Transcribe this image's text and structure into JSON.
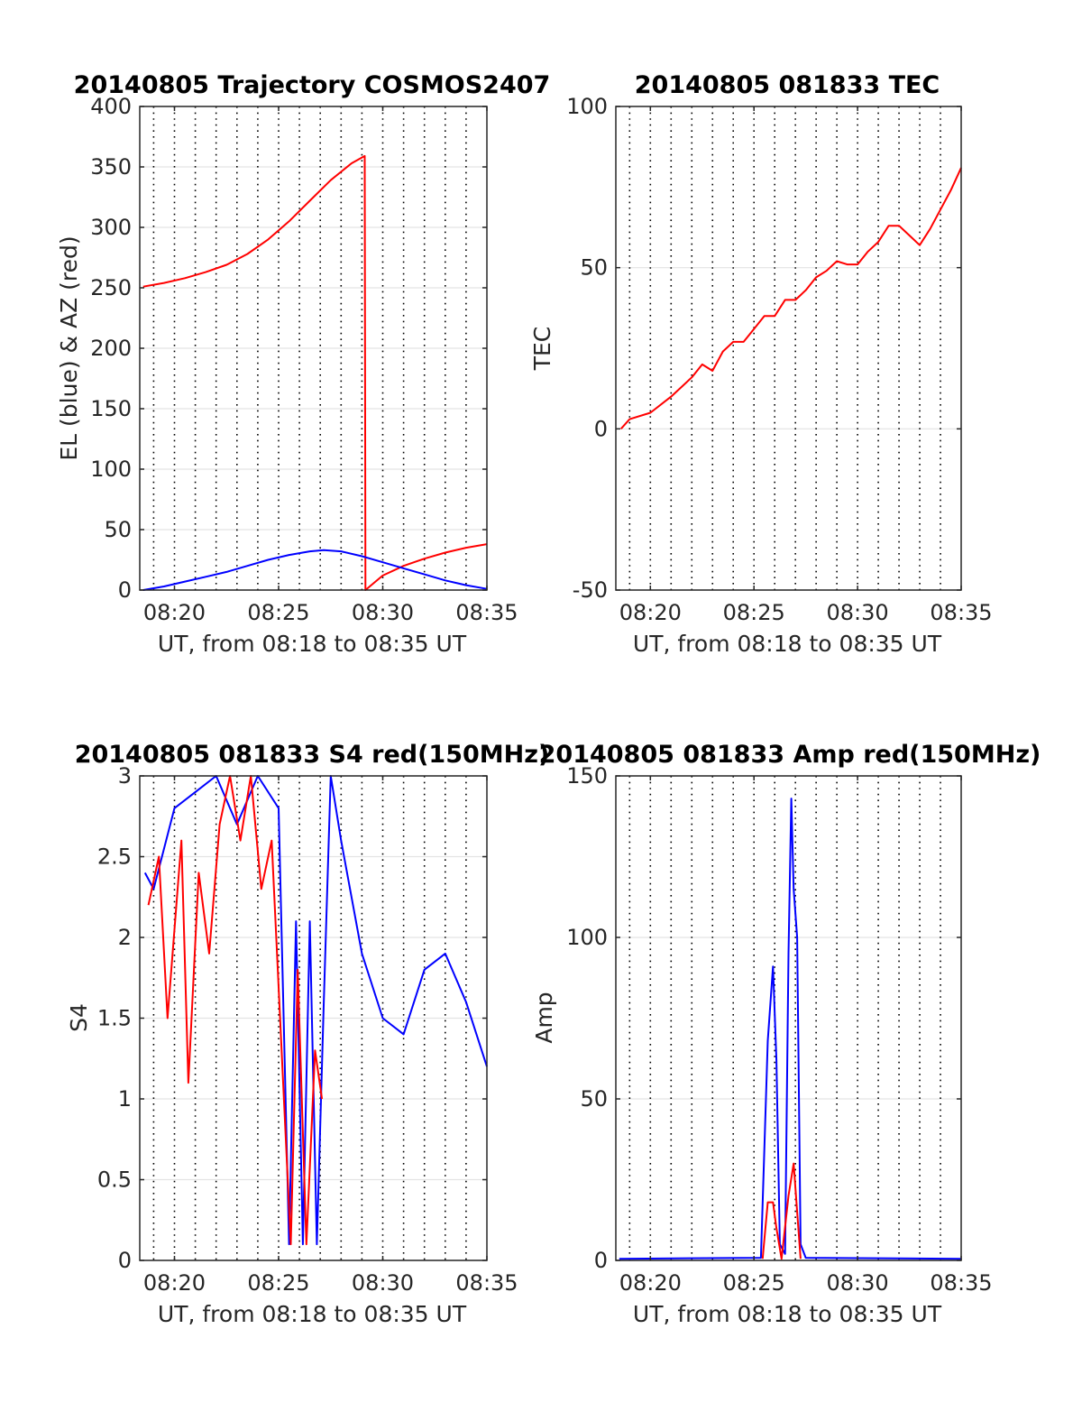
{
  "chart_data": [
    {
      "type": "line",
      "title": "20140805 Trajectory COSMOS2407",
      "xlabel": "UT, from 08:18 to 08:35 UT",
      "ylabel": "EL (blue) & AZ (red)",
      "xlim": [
        "08:18:20",
        "08:35:00"
      ],
      "ylim": [
        0,
        400
      ],
      "xticks": [
        "08:20",
        "08:25",
        "08:30",
        "08:35"
      ],
      "yticks": [
        "0",
        "50",
        "100",
        "150",
        "200",
        "250",
        "300",
        "350",
        "400"
      ],
      "grid": true,
      "series": [
        {
          "color": "#ff0000",
          "x": [
            "08:18:30",
            "08:19:30",
            "08:20:30",
            "08:21:30",
            "08:22:30",
            "08:23:30",
            "08:24:30",
            "08:25:30",
            "08:26:30",
            "08:27:30",
            "08:28:30",
            "08:29:08",
            "08:29:10",
            "08:30:00",
            "08:31:00",
            "08:32:00",
            "08:33:00",
            "08:34:00",
            "08:35:00"
          ],
          "y": [
            251,
            254,
            258,
            263,
            269,
            278,
            290,
            305,
            322,
            339,
            353,
            359,
            0,
            12,
            20,
            26,
            31,
            35,
            38
          ]
        },
        {
          "color": "#0000ff",
          "x": [
            "08:18:30",
            "08:19:30",
            "08:20:30",
            "08:21:30",
            "08:22:30",
            "08:23:30",
            "08:24:30",
            "08:25:30",
            "08:26:30",
            "08:27:10",
            "08:28:00",
            "08:29:00",
            "08:30:00",
            "08:31:00",
            "08:32:00",
            "08:33:00",
            "08:34:00",
            "08:35:00"
          ],
          "y": [
            0,
            3,
            7,
            11,
            15,
            20,
            25,
            29,
            32,
            33,
            32,
            28,
            23,
            18,
            13,
            8,
            4,
            1
          ]
        }
      ]
    },
    {
      "type": "line",
      "title": "20140805 081833 TEC",
      "xlabel": "UT, from 08:18 to 08:35 UT",
      "ylabel": "TEC",
      "xlim": [
        "08:18:20",
        "08:35:00"
      ],
      "ylim": [
        -50,
        100
      ],
      "xticks": [
        "08:20",
        "08:25",
        "08:30",
        "08:35"
      ],
      "yticks": [
        "-50",
        "0",
        "50",
        "100"
      ],
      "grid": true,
      "series": [
        {
          "color": "#ff0000",
          "x": [
            "08:18:35",
            "08:19:00",
            "08:20:00",
            "08:21:00",
            "08:22:00",
            "08:22:30",
            "08:23:00",
            "08:23:30",
            "08:24:00",
            "08:24:30",
            "08:25:00",
            "08:25:30",
            "08:26:00",
            "08:26:30",
            "08:27:00",
            "08:27:30",
            "08:28:00",
            "08:28:30",
            "08:29:00",
            "08:29:30",
            "08:30:00",
            "08:30:30",
            "08:31:00",
            "08:31:30",
            "08:32:00",
            "08:32:30",
            "08:33:00",
            "08:33:30",
            "08:34:00",
            "08:34:30",
            "08:35:00"
          ],
          "y": [
            0,
            3,
            5,
            10,
            16,
            20,
            18,
            24,
            27,
            27,
            31,
            35,
            35,
            40,
            40,
            43,
            47,
            49,
            52,
            51,
            51,
            55,
            58,
            63,
            63,
            60,
            57,
            62,
            68,
            74,
            81
          ]
        }
      ]
    },
    {
      "type": "line",
      "title": "20140805 081833 S4 red(150MHz)",
      "xlabel": "UT, from 08:18 to 08:35 UT",
      "ylabel": "S4",
      "xlim": [
        "08:18:20",
        "08:35:00"
      ],
      "ylim": [
        0,
        3
      ],
      "xticks": [
        "08:20",
        "08:25",
        "08:30",
        "08:35"
      ],
      "yticks": [
        "0",
        "0.5",
        "1",
        "1.5",
        "2",
        "2.5",
        "3"
      ],
      "grid": true,
      "series": [
        {
          "color": "#0000ff",
          "x": [
            "08:18:35",
            "08:19:00",
            "08:20:00",
            "08:21:00",
            "08:22:00",
            "08:23:00",
            "08:24:00",
            "08:25:00",
            "08:25:30",
            "08:25:50",
            "08:26:10",
            "08:26:30",
            "08:26:50",
            "08:27:10",
            "08:27:30",
            "08:28:00",
            "08:29:00",
            "08:30:00",
            "08:31:00",
            "08:32:00",
            "08:33:00",
            "08:34:00",
            "08:35:00"
          ],
          "y": [
            2.4,
            2.3,
            2.8,
            2.9,
            3.0,
            2.7,
            3.0,
            2.8,
            0.1,
            2.1,
            0.1,
            2.1,
            0.1,
            1.6,
            3.0,
            2.6,
            1.9,
            1.5,
            1.4,
            1.8,
            1.9,
            1.6,
            1.2
          ]
        },
        {
          "color": "#ff0000",
          "x": [
            "08:18:45",
            "08:19:15",
            "08:19:40",
            "08:20:20",
            "08:20:40",
            "08:21:10",
            "08:21:40",
            "08:22:10",
            "08:22:40",
            "08:23:10",
            "08:23:40",
            "08:24:10",
            "08:24:40",
            "08:25:35",
            "08:25:55",
            "08:26:20",
            "08:26:45",
            "08:27:05"
          ],
          "y": [
            2.2,
            2.5,
            1.5,
            2.6,
            1.1,
            2.4,
            1.9,
            2.7,
            3.0,
            2.6,
            3.0,
            2.3,
            2.6,
            0.1,
            1.8,
            0.1,
            1.3,
            1.0
          ]
        }
      ]
    },
    {
      "type": "line",
      "title": "20140805 081833 Amp red(150MHz)",
      "xlabel": "UT, from 08:18 to 08:35 UT",
      "ylabel": "Amp",
      "xlim": [
        "08:18:20",
        "08:35:00"
      ],
      "ylim": [
        0,
        150
      ],
      "xticks": [
        "08:20",
        "08:25",
        "08:30",
        "08:35"
      ],
      "yticks": [
        "0",
        "50",
        "100",
        "150"
      ],
      "grid": true,
      "series": [
        {
          "color": "#0000ff",
          "x": [
            "08:18:30",
            "08:25:20",
            "08:25:40",
            "08:25:55",
            "08:26:05",
            "08:26:15",
            "08:26:30",
            "08:26:40",
            "08:26:48",
            "08:26:55",
            "08:27:05",
            "08:27:15",
            "08:27:30",
            "08:35:00"
          ],
          "y": [
            0.5,
            0.8,
            68,
            91,
            62,
            5,
            2,
            95,
            143,
            115,
            100,
            5,
            0.8,
            0.5
          ]
        },
        {
          "color": "#ff0000",
          "x": [
            "08:25:25",
            "08:25:40",
            "08:25:55",
            "08:26:05",
            "08:26:20",
            "08:26:40",
            "08:26:55",
            "08:27:05",
            "08:27:15"
          ],
          "y": [
            0.5,
            18,
            18,
            10,
            0.5,
            20,
            30,
            15,
            0.5
          ]
        }
      ]
    }
  ]
}
